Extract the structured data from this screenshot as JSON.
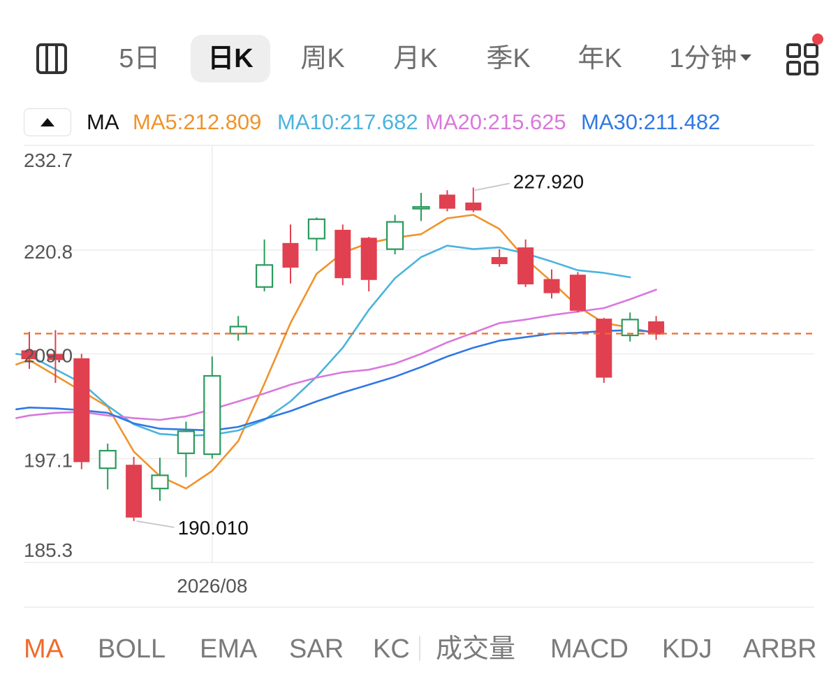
{
  "tabs": [
    {
      "label": "5日",
      "active": false
    },
    {
      "label": "日K",
      "active": true
    },
    {
      "label": "周K",
      "active": false
    },
    {
      "label": "月K",
      "active": false
    },
    {
      "label": "季K",
      "active": false
    },
    {
      "label": "年K",
      "active": false
    },
    {
      "label": "1分钟",
      "active": false,
      "dropdown": true
    }
  ],
  "icons": {
    "panel": "panel-layout-icon",
    "grid": "grid-menu-icon",
    "collapse": "triangle-up-icon"
  },
  "legend": {
    "ma_label": "MA",
    "ma5": "MA5:212.809",
    "ma10": "MA10:217.682",
    "ma20": "MA20:215.625",
    "ma30": "MA30:211.482"
  },
  "colors": {
    "up": "#2a9a5c",
    "down": "#e0404f",
    "ma5": "#f0932b",
    "ma10": "#4bb3de",
    "ma20": "#d978dc",
    "ma30": "#2f78e4",
    "current_price": "#ef6c2b",
    "active_indicator": "#ef6c2b",
    "notification": "#e8434f"
  },
  "chart_data": {
    "type": "candlestick",
    "ylim": [
      185.3,
      232.7
    ],
    "y_ticks": [
      "232.7",
      "220.8",
      "209.0",
      "197.1",
      "185.3"
    ],
    "x_tick_label": "2026/08",
    "x_tick_index": 7,
    "high_label": "227.920",
    "high_index": 17,
    "low_label": "190.010",
    "low_index": 4,
    "current_price": 211.3,
    "candles": [
      {
        "o": 209.4,
        "h": 211.5,
        "l": 207.3,
        "c": 208.4
      },
      {
        "o": 209.0,
        "h": 211.7,
        "l": 205.7,
        "c": 208.3
      },
      {
        "o": 208.5,
        "h": 209.0,
        "l": 195.9,
        "c": 196.7
      },
      {
        "o": 196.0,
        "h": 198.8,
        "l": 193.6,
        "c": 198.0
      },
      {
        "o": 196.4,
        "h": 197.3,
        "l": 190.0,
        "c": 190.4
      },
      {
        "o": 193.7,
        "h": 197.2,
        "l": 192.3,
        "c": 195.2
      },
      {
        "o": 197.7,
        "h": 201.3,
        "l": 195.0,
        "c": 200.2
      },
      {
        "o": 197.6,
        "h": 208.7,
        "l": 197.1,
        "c": 206.5
      },
      {
        "o": 211.3,
        "h": 213.3,
        "l": 210.5,
        "c": 212.1
      },
      {
        "o": 216.6,
        "h": 222.0,
        "l": 216.1,
        "c": 219.1
      },
      {
        "o": 221.6,
        "h": 223.7,
        "l": 217.0,
        "c": 218.8
      },
      {
        "o": 222.1,
        "h": 224.5,
        "l": 220.7,
        "c": 224.3
      },
      {
        "o": 223.1,
        "h": 223.7,
        "l": 216.8,
        "c": 217.6
      },
      {
        "o": 222.2,
        "h": 222.3,
        "l": 216.1,
        "c": 217.4
      },
      {
        "o": 220.9,
        "h": 224.8,
        "l": 220.3,
        "c": 224.0
      },
      {
        "o": 225.5,
        "h": 227.3,
        "l": 224.1,
        "c": 225.7
      },
      {
        "o": 227.1,
        "h": 227.6,
        "l": 225.2,
        "c": 225.5
      },
      {
        "o": 226.2,
        "h": 227.9,
        "l": 225.1,
        "c": 225.3
      },
      {
        "o": 220.0,
        "h": 220.9,
        "l": 218.9,
        "c": 219.2
      },
      {
        "o": 221.1,
        "h": 222.0,
        "l": 216.6,
        "c": 216.9
      },
      {
        "o": 217.5,
        "h": 218.6,
        "l": 215.3,
        "c": 215.9
      },
      {
        "o": 218.0,
        "h": 218.3,
        "l": 213.7,
        "c": 213.9
      },
      {
        "o": 213.0,
        "h": 213.1,
        "l": 205.7,
        "c": 206.3
      },
      {
        "o": 211.1,
        "h": 213.7,
        "l": 210.4,
        "c": 212.9
      },
      {
        "o": 212.7,
        "h": 213.3,
        "l": 210.6,
        "c": 211.2
      }
    ],
    "series": [
      {
        "name": "MA5",
        "values": [
          null,
          null,
          null,
          null,
          null,
          null,
          null,
          null,
          null,
          null,
          null,
          null,
          null,
          null,
          null,
          null,
          null,
          null,
          null,
          null,
          null,
          null,
          null,
          null,
          null
        ]
      },
      {
        "name": "MA10",
        "values": [
          null,
          null,
          null,
          null,
          null,
          null,
          null,
          null,
          null,
          null,
          null,
          null,
          null,
          null,
          null,
          null,
          null,
          null,
          null,
          null,
          null,
          null,
          null,
          null,
          null
        ]
      },
      {
        "name": "MA20",
        "values": [
          null,
          null,
          null,
          null,
          null,
          null,
          null,
          null,
          null,
          null,
          null,
          null,
          null,
          null,
          null,
          null,
          null,
          null,
          null,
          null,
          null,
          null,
          null,
          null,
          null
        ]
      },
      {
        "name": "MA30",
        "values": [
          null,
          null,
          null,
          null,
          null,
          null,
          null,
          null,
          null,
          null,
          null,
          null,
          null,
          null,
          null,
          null,
          null,
          null,
          null,
          null,
          null,
          null,
          null,
          null,
          null
        ]
      }
    ]
  },
  "ma_curves": {
    "ma5": [
      [
        -0.5,
        207.8
      ],
      [
        0,
        208.3
      ],
      [
        3,
        203.0
      ],
      [
        4,
        197.9
      ],
      [
        5,
        195.1
      ],
      [
        6,
        193.7
      ],
      [
        7,
        195.7
      ],
      [
        8,
        199.1
      ],
      [
        9,
        205.6
      ],
      [
        10,
        212.5
      ],
      [
        11,
        218.1
      ],
      [
        12,
        220.5
      ],
      [
        13,
        221.6
      ],
      [
        14,
        222.2
      ],
      [
        15,
        222.6
      ],
      [
        16,
        224.4
      ],
      [
        17,
        224.8
      ],
      [
        18,
        223.2
      ],
      [
        19,
        219.8
      ],
      [
        20,
        217.2
      ],
      [
        21,
        214.4
      ],
      [
        22,
        212.5
      ],
      [
        23,
        212.0
      ],
      [
        24,
        211.3
      ]
    ],
    "ma10": [
      [
        -0.5,
        209.0
      ],
      [
        0,
        208.8
      ],
      [
        2,
        205.7
      ],
      [
        3,
        203.1
      ],
      [
        4,
        201.0
      ],
      [
        5,
        199.9
      ],
      [
        6,
        199.7
      ],
      [
        7,
        199.8
      ],
      [
        8,
        200.3
      ],
      [
        9,
        201.5
      ],
      [
        10,
        203.6
      ],
      [
        11,
        206.4
      ],
      [
        12,
        209.7
      ],
      [
        13,
        214.0
      ],
      [
        14,
        217.6
      ],
      [
        15,
        220.0
      ],
      [
        16,
        221.3
      ],
      [
        17,
        220.9
      ],
      [
        18,
        221.1
      ],
      [
        19,
        220.4
      ],
      [
        20,
        219.5
      ],
      [
        21,
        218.5
      ],
      [
        22,
        218.2
      ],
      [
        23,
        217.7
      ]
    ],
    "ma20": [
      [
        -0.5,
        201.7
      ],
      [
        0,
        202.0
      ],
      [
        1,
        202.3
      ],
      [
        2,
        202.4
      ],
      [
        3,
        202.0
      ],
      [
        4,
        201.7
      ],
      [
        5,
        201.5
      ],
      [
        6,
        201.9
      ],
      [
        7,
        202.7
      ],
      [
        8,
        203.6
      ],
      [
        9,
        204.5
      ],
      [
        10,
        205.5
      ],
      [
        11,
        206.3
      ],
      [
        12,
        206.9
      ],
      [
        13,
        207.2
      ],
      [
        14,
        207.9
      ],
      [
        15,
        209.0
      ],
      [
        16,
        210.3
      ],
      [
        17,
        211.4
      ],
      [
        18,
        212.5
      ],
      [
        19,
        212.9
      ],
      [
        20,
        213.4
      ],
      [
        21,
        213.8
      ],
      [
        22,
        214.2
      ],
      [
        23,
        215.2
      ],
      [
        24,
        216.3
      ]
    ],
    "ma30": [
      [
        -0.5,
        202.7
      ],
      [
        0,
        202.9
      ],
      [
        1,
        202.8
      ],
      [
        2,
        202.6
      ],
      [
        3,
        202.3
      ],
      [
        4,
        201.1
      ],
      [
        5,
        200.5
      ],
      [
        6,
        200.4
      ],
      [
        7,
        200.3
      ],
      [
        8,
        200.7
      ],
      [
        9,
        201.6
      ],
      [
        10,
        202.5
      ],
      [
        11,
        203.6
      ],
      [
        12,
        204.6
      ],
      [
        13,
        205.5
      ],
      [
        14,
        206.4
      ],
      [
        15,
        207.5
      ],
      [
        16,
        208.7
      ],
      [
        17,
        209.7
      ],
      [
        18,
        210.5
      ],
      [
        19,
        210.9
      ],
      [
        20,
        211.3
      ],
      [
        21,
        211.4
      ],
      [
        22,
        211.6
      ],
      [
        23,
        211.7
      ],
      [
        24,
        211.5
      ]
    ]
  },
  "indicators": [
    {
      "label": "MA",
      "active": true
    },
    {
      "label": "BOLL",
      "active": false
    },
    {
      "label": "EMA",
      "active": false
    },
    {
      "label": "SAR",
      "active": false
    },
    {
      "label": "KC",
      "active": false
    },
    {
      "label": "成交量",
      "active": false
    },
    {
      "label": "MACD",
      "active": false
    },
    {
      "label": "KDJ",
      "active": false
    },
    {
      "label": "ARBR",
      "active": false
    }
  ]
}
